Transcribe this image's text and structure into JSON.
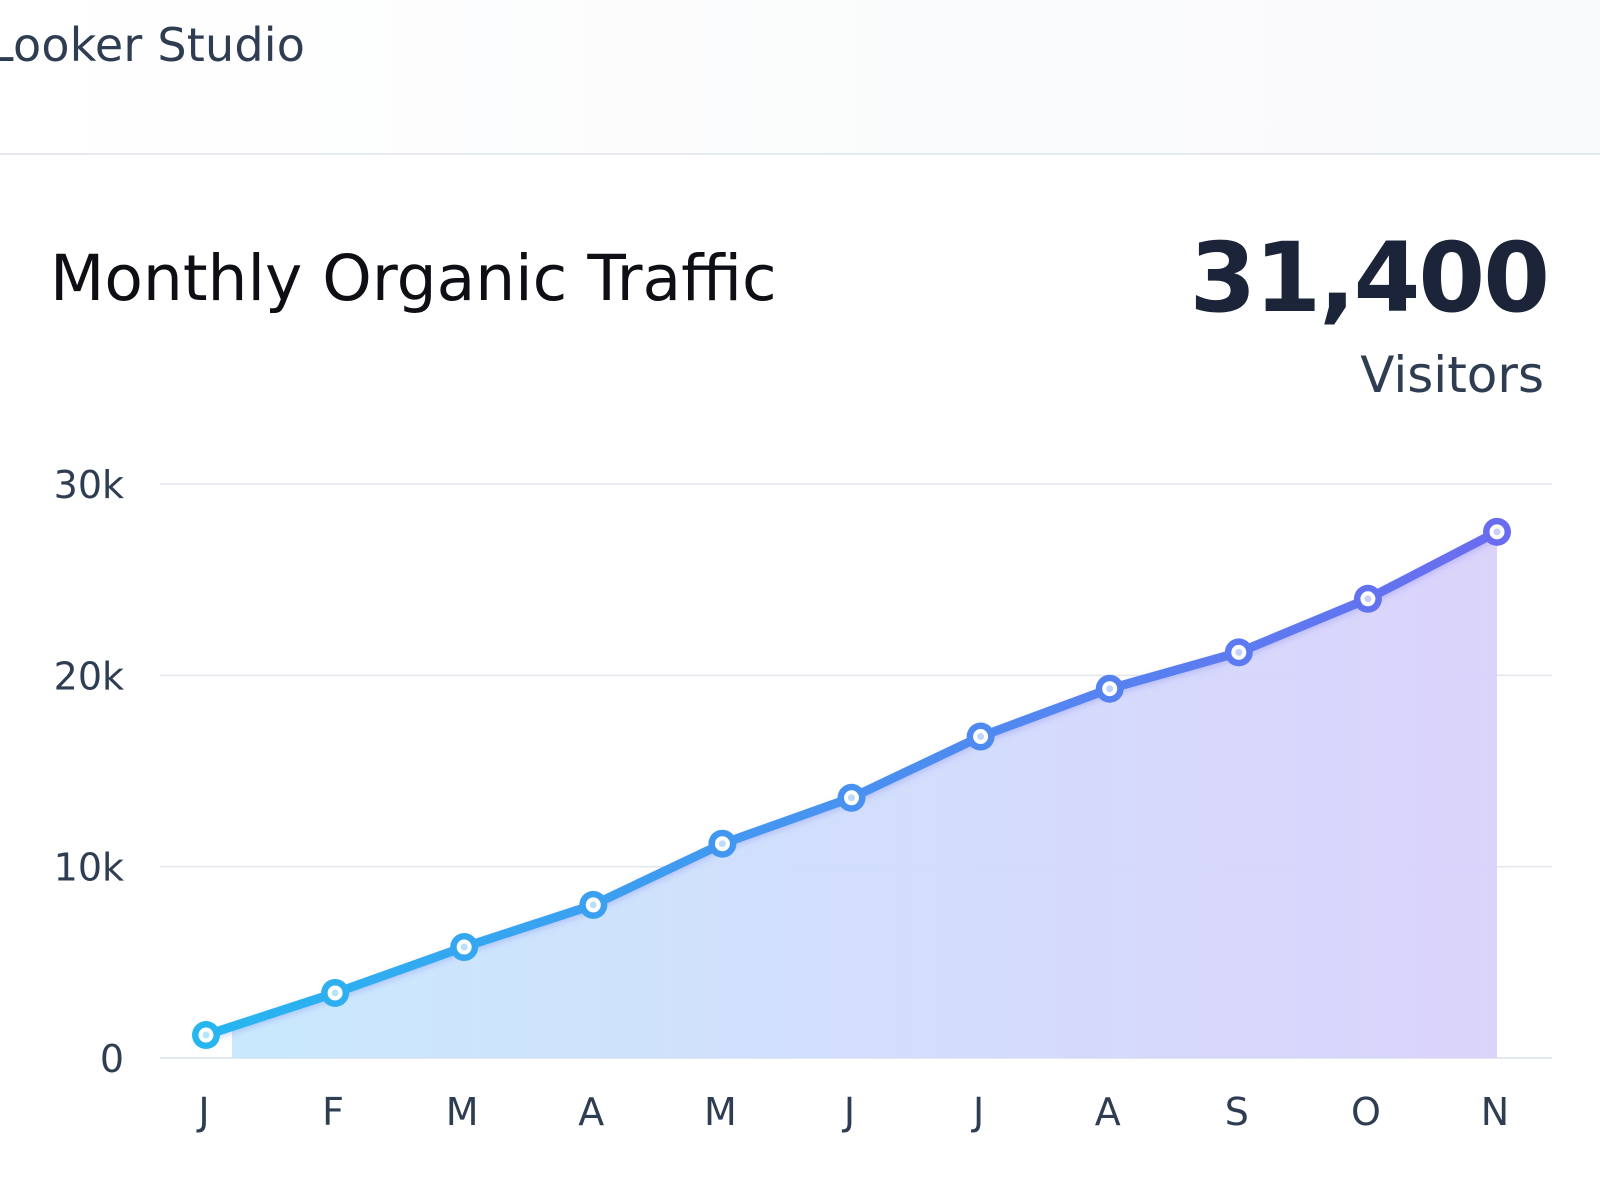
{
  "header": {
    "app_title": "Looker Studio"
  },
  "card": {
    "title": "Monthly Organic Traffic",
    "kpi_value": "31,400",
    "kpi_unit": "Visitors"
  },
  "colors": {
    "line_start": "#27b6f0",
    "line_end": "#6a6cf0",
    "area_start": "#c6e8fd",
    "area_end": "#d9d1fb",
    "grid": "#e3e7ee",
    "tick_text": "#2f3d52"
  },
  "chart_data": {
    "type": "line",
    "categories": [
      "J",
      "F",
      "M",
      "A",
      "M",
      "J",
      "J",
      "A",
      "S",
      "O",
      "N"
    ],
    "series": [
      {
        "values": [
          1200,
          3400,
          5800,
          8000,
          11200,
          13600,
          16800,
          19300,
          21200,
          24000,
          27500
        ]
      }
    ],
    "ylim": [
      0,
      30000
    ],
    "yticks": [
      0,
      10000,
      20000,
      30000
    ],
    "ytick_labels": [
      "0",
      "10k",
      "20k",
      "30k"
    ],
    "grid": true,
    "area_fill": true,
    "legend": "none"
  }
}
